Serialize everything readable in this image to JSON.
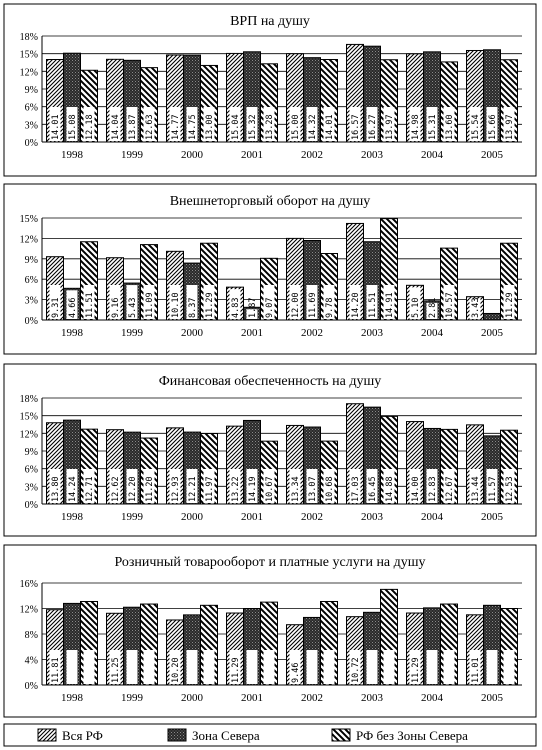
{
  "chart_data": [
    {
      "type": "bar",
      "title": "ВРП на душу",
      "categories": [
        "1998",
        "1999",
        "2000",
        "2001",
        "2002",
        "2003",
        "2004",
        "2005"
      ],
      "ylim": [
        0,
        18
      ],
      "yticks": [
        "0%",
        "3%",
        "6%",
        "9%",
        "12%",
        "15%",
        "18%"
      ],
      "grid": true,
      "series": [
        {
          "name": "Вся РФ",
          "values": [
            14.01,
            14.04,
            14.77,
            15.04,
            15.0,
            16.57,
            14.98,
            15.54
          ],
          "labels": [
            "14.01",
            "14.04",
            "14.77",
            "15.04",
            "15.00",
            "16.57",
            "14.98",
            "15.54"
          ]
        },
        {
          "name": "Зона Севера",
          "values": [
            15.08,
            13.87,
            14.75,
            15.32,
            14.32,
            16.27,
            15.31,
            15.66
          ],
          "labels": [
            "15.08",
            "13.87",
            "14.75",
            "15.32",
            "14.32",
            "16.27",
            "15.31",
            "15.66"
          ]
        },
        {
          "name": "РФ без Зоны Севера",
          "values": [
            12.18,
            12.63,
            13.0,
            13.28,
            14.01,
            13.97,
            13.6,
            13.97
          ],
          "labels": [
            "12.18",
            "12.63",
            "13.00",
            "13.28",
            "14.01",
            "13.97",
            "13.60",
            "13.97"
          ]
        }
      ]
    },
    {
      "type": "bar",
      "title": "Внешнеторговый оборот на душу",
      "categories": [
        "1998",
        "1999",
        "2000",
        "2001",
        "2002",
        "2003",
        "2004",
        "2005"
      ],
      "ylim": [
        0,
        15
      ],
      "yticks": [
        "0%",
        "3%",
        "6%",
        "9%",
        "12%",
        "15%"
      ],
      "grid": true,
      "series": [
        {
          "name": "Вся РФ",
          "values": [
            9.31,
            9.16,
            10.1,
            4.83,
            12.0,
            14.2,
            5.1,
            3.43
          ],
          "labels": [
            "9.31",
            "9.16",
            "10.10",
            "4.83",
            "12.00",
            "14.20",
            "5.10",
            "3.43"
          ]
        },
        {
          "name": "Зона Севера",
          "values": [
            4.66,
            5.43,
            8.37,
            1.87,
            11.69,
            11.51,
            2.81,
            0.96
          ],
          "labels": [
            "4.66",
            "5.43",
            "8.37",
            "1.87",
            "11.69",
            "11.51",
            "2.81",
            "0.96"
          ]
        },
        {
          "name": "РФ без Зоны Севера",
          "values": [
            11.51,
            11.09,
            11.29,
            9.07,
            9.78,
            14.91,
            10.57,
            11.29
          ],
          "labels": [
            "11.51",
            "11.09",
            "11.29",
            "9.07",
            "9.78",
            "14.91",
            "10.57",
            "11.29"
          ]
        }
      ]
    },
    {
      "type": "bar",
      "title": "Финансовая обеспеченность на душу",
      "categories": [
        "1998",
        "1999",
        "2000",
        "2001",
        "2002",
        "2003",
        "2004",
        "2005"
      ],
      "ylim": [
        0,
        18
      ],
      "yticks": [
        "0%",
        "3%",
        "6%",
        "9%",
        "12%",
        "15%",
        "18%"
      ],
      "grid": true,
      "series": [
        {
          "name": "Вся РФ",
          "values": [
            13.8,
            12.62,
            12.93,
            13.22,
            13.34,
            17.03,
            14.0,
            13.44
          ],
          "labels": [
            "13.80",
            "12.62",
            "12.93",
            "13.22",
            "13.34",
            "17.03",
            "14.00",
            "13.44"
          ]
        },
        {
          "name": "Зона Севера",
          "values": [
            14.24,
            12.2,
            12.21,
            14.19,
            13.07,
            16.45,
            12.83,
            11.57
          ],
          "labels": [
            "14.24",
            "12.20",
            "12.21",
            "14.19",
            "13.07",
            "16.45",
            "12.83",
            "11.57"
          ]
        },
        {
          "name": "РФ без Зоны Севера",
          "values": [
            12.71,
            11.2,
            11.97,
            10.67,
            10.68,
            14.88,
            12.67,
            12.53
          ],
          "labels": [
            "12.71",
            "11.20",
            "11.97",
            "10.67",
            "10.68",
            "14.88",
            "12.67",
            "12.53"
          ]
        }
      ]
    },
    {
      "type": "bar",
      "title": "Розничный товарооборот и платные услуги на душу",
      "categories": [
        "1998",
        "1999",
        "2000",
        "2001",
        "2002",
        "2003",
        "2004",
        "2005"
      ],
      "ylim": [
        0,
        16
      ],
      "yticks": [
        "0%",
        "4%",
        "8%",
        "12%",
        "16%"
      ],
      "grid": true,
      "series": [
        {
          "name": "Вся РФ",
          "values": [
            11.81,
            11.25,
            10.2,
            11.29,
            9.46,
            10.72,
            11.29,
            11.01
          ],
          "labels": [
            "11.81",
            "11.25",
            "10.20",
            "11.29",
            "9.46",
            "10.72",
            "11.29",
            "11.01"
          ]
        },
        {
          "name": "Зона Севера",
          "values": [
            12.8,
            12.2,
            11.0,
            12.0,
            10.6,
            11.4,
            12.1,
            12.5
          ],
          "labels": [
            "",
            "",
            "",
            "",
            "",
            "",
            "",
            ""
          ]
        },
        {
          "name": "РФ без Зоны Севера",
          "values": [
            13.1,
            12.7,
            12.5,
            13.0,
            13.1,
            15.0,
            12.7,
            12.0
          ],
          "labels": [
            "",
            "",
            "",
            "",
            "",
            "",
            "",
            ""
          ]
        }
      ]
    }
  ],
  "legend": [
    {
      "label": "Вся РФ",
      "pattern": "hatch-fine"
    },
    {
      "label": "Зона Севера",
      "pattern": "dark-dotted"
    },
    {
      "label": "РФ без Зоны Севера",
      "pattern": "hatch-wide"
    }
  ],
  "colors": {
    "frame": "#000000",
    "background": "#ffffff",
    "label_box": "#ffffff"
  }
}
